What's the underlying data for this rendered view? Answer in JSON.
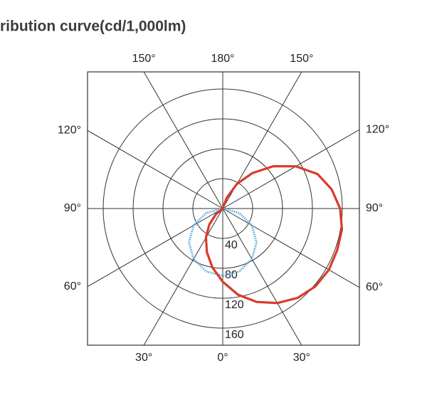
{
  "chart_data": {
    "type": "polar",
    "title": "ribution curve(cd/1,000lm)",
    "rlim": [
      0,
      160
    ],
    "rticks": [
      40,
      80,
      120,
      160
    ],
    "angle_ticks": [
      {
        "value": 0,
        "label": "0°"
      },
      {
        "value": 30,
        "label": "30°"
      },
      {
        "value": 60,
        "label": "60°"
      },
      {
        "value": 90,
        "label": "90°"
      },
      {
        "value": 120,
        "label": "120°"
      },
      {
        "value": 150,
        "label": "150°"
      },
      {
        "value": 180,
        "label": "180°"
      }
    ],
    "series": [
      {
        "color": "#5aa8dc",
        "style": "dotted",
        "angles": [
          -90,
          -75,
          -60,
          -45,
          -30,
          -15,
          0,
          15,
          30,
          45,
          60,
          75,
          90
        ],
        "values": [
          0,
          23,
          45,
          64,
          78,
          87,
          90,
          87,
          78,
          64,
          45,
          23,
          0
        ]
      },
      {
        "color": "#d93a2b",
        "style": "solid",
        "angles": [
          -60,
          -50,
          -40,
          -30,
          -20,
          -10,
          0,
          10,
          20,
          30,
          40,
          50,
          60,
          70,
          80,
          90,
          100,
          110,
          120,
          130,
          140,
          150,
          160,
          170
        ],
        "values": [
          0,
          12,
          28,
          45,
          62,
          80,
          98,
          117,
          133,
          146,
          156,
          162,
          164,
          163,
          162,
          157,
          148,
          135,
          113,
          88,
          62,
          38,
          15,
          0
        ]
      }
    ]
  }
}
